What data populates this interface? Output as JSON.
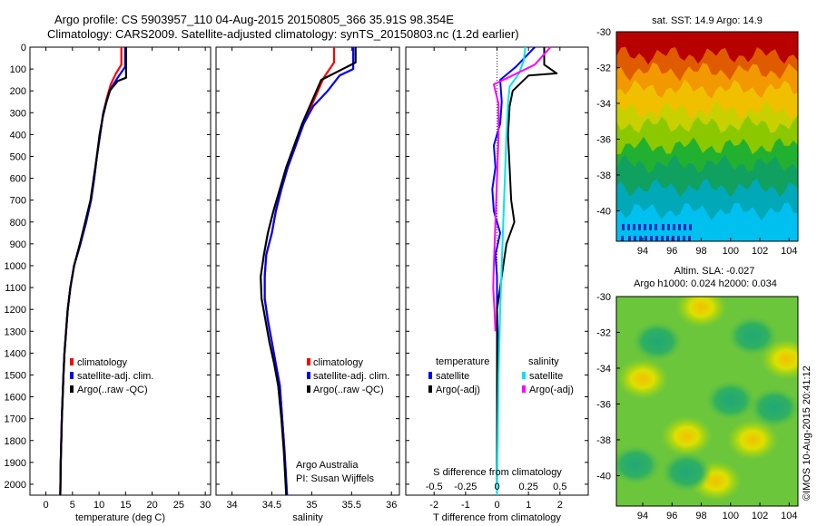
{
  "header": {
    "line1": "Argo profile: CS 5903957_110 04-Aug-2015 20150805_366 35.91S 98.354E",
    "line2": "Climatology: CARS2009. Satellite-adjusted climatology: synTS_20150803.nc (1.2d earlier)"
  },
  "colors": {
    "red": "#ff0000",
    "blue": "#0000ff",
    "black": "#000000",
    "cyan": "#00e5ee",
    "magenta": "#ff00ff"
  },
  "chart_data": [
    {
      "type": "line",
      "xlabel": "temperature (deg C)",
      "x_ticks": [
        "0",
        "5",
        "10",
        "15",
        "20",
        "25",
        "30"
      ],
      "xlim": [
        -3,
        31
      ],
      "ylim": [
        2050,
        0
      ],
      "y_ticks": [
        "0",
        "100",
        "200",
        "300",
        "400",
        "500",
        "600",
        "700",
        "800",
        "900",
        "1000",
        "1100",
        "1200",
        "1300",
        "1400",
        "1500",
        "1600",
        "1700",
        "1800",
        "1900",
        "2000"
      ],
      "legend": [
        "climatology",
        "satellite-adj. clim.",
        "Argo(..raw -QC)"
      ],
      "series": [
        {
          "name": "climatology",
          "color": "red",
          "points": [
            [
              14.2,
              0
            ],
            [
              14.2,
              80
            ],
            [
              13.2,
              120
            ],
            [
              12.2,
              170
            ],
            [
              11.5,
              230
            ],
            [
              10.8,
              300
            ],
            [
              10.2,
              400
            ],
            [
              9.6,
              500
            ],
            [
              9.1,
              600
            ],
            [
              8.5,
              700
            ],
            [
              7.5,
              800
            ],
            [
              6.5,
              900
            ],
            [
              5.3,
              1000
            ],
            [
              4.6,
              1100
            ],
            [
              4.1,
              1200
            ],
            [
              3.8,
              1300
            ],
            [
              3.5,
              1400
            ],
            [
              3.3,
              1500
            ],
            [
              3.0,
              1700
            ],
            [
              2.8,
              1900
            ],
            [
              2.7,
              2050
            ]
          ]
        },
        {
          "name": "satellite-adj. clim.",
          "color": "blue",
          "points": [
            [
              14.9,
              0
            ],
            [
              14.9,
              90
            ],
            [
              13.5,
              140
            ],
            [
              12.2,
              190
            ],
            [
              11.5,
              240
            ],
            [
              10.8,
              300
            ],
            [
              10.2,
              400
            ],
            [
              9.6,
              500
            ],
            [
              9.1,
              600
            ],
            [
              8.5,
              700
            ],
            [
              7.6,
              800
            ],
            [
              6.5,
              900
            ],
            [
              5.3,
              1000
            ],
            [
              4.6,
              1100
            ],
            [
              4.1,
              1200
            ],
            [
              3.8,
              1300
            ],
            [
              3.5,
              1400
            ],
            [
              3.3,
              1500
            ],
            [
              3.0,
              1700
            ],
            [
              2.8,
              1900
            ],
            [
              2.7,
              2050
            ]
          ]
        },
        {
          "name": "Argo(..raw -QC)",
          "color": "black",
          "points": [
            [
              15.1,
              0
            ],
            [
              15.1,
              140
            ],
            [
              13.5,
              155
            ],
            [
              12.0,
              200
            ],
            [
              11.3,
              260
            ],
            [
              10.7,
              320
            ],
            [
              10.1,
              400
            ],
            [
              9.6,
              500
            ],
            [
              9.0,
              600
            ],
            [
              8.4,
              700
            ],
            [
              7.4,
              800
            ],
            [
              6.4,
              900
            ],
            [
              5.3,
              1000
            ],
            [
              4.6,
              1100
            ],
            [
              4.1,
              1200
            ],
            [
              3.8,
              1300
            ],
            [
              3.5,
              1400
            ],
            [
              3.3,
              1500
            ],
            [
              3.0,
              1700
            ],
            [
              2.8,
              1900
            ],
            [
              2.7,
              2050
            ]
          ]
        }
      ]
    },
    {
      "type": "line",
      "xlabel": "salinity",
      "x_ticks": [
        "34",
        "34.5",
        "35",
        "35.5",
        "36"
      ],
      "xlim": [
        33.8,
        36.1
      ],
      "ylim": [
        2050,
        0
      ],
      "legend": [
        "climatology",
        "satellite-adj. clim.",
        "Argo(..raw -QC)"
      ],
      "annotation": [
        "Argo Australia",
        "PI: Susan Wijffels"
      ],
      "series": [
        {
          "name": "climatology",
          "color": "red",
          "points": [
            [
              35.28,
              0
            ],
            [
              35.28,
              70
            ],
            [
              35.15,
              140
            ],
            [
              35.02,
              250
            ],
            [
              34.9,
              350
            ],
            [
              34.8,
              450
            ],
            [
              34.7,
              550
            ],
            [
              34.62,
              650
            ],
            [
              34.55,
              750
            ],
            [
              34.5,
              850
            ],
            [
              34.43,
              950
            ],
            [
              34.41,
              1050
            ],
            [
              34.41,
              1150
            ],
            [
              34.45,
              1250
            ],
            [
              34.5,
              1350
            ],
            [
              34.55,
              1450
            ],
            [
              34.6,
              1550
            ],
            [
              34.63,
              1700
            ],
            [
              34.66,
              1850
            ],
            [
              34.69,
              2050
            ]
          ]
        },
        {
          "name": "satellite-adj. clim.",
          "color": "blue",
          "points": [
            [
              35.52,
              0
            ],
            [
              35.52,
              100
            ],
            [
              35.35,
              130
            ],
            [
              35.2,
              200
            ],
            [
              35.02,
              270
            ],
            [
              34.9,
              350
            ],
            [
              34.8,
              450
            ],
            [
              34.7,
              550
            ],
            [
              34.62,
              650
            ],
            [
              34.55,
              750
            ],
            [
              34.5,
              850
            ],
            [
              34.43,
              950
            ],
            [
              34.41,
              1050
            ],
            [
              34.41,
              1150
            ],
            [
              34.45,
              1250
            ],
            [
              34.5,
              1350
            ],
            [
              34.55,
              1450
            ],
            [
              34.6,
              1550
            ],
            [
              34.63,
              1700
            ],
            [
              34.66,
              1850
            ],
            [
              34.69,
              2050
            ]
          ]
        },
        {
          "name": "Argo(..raw -QC)",
          "color": "black",
          "points": [
            [
              35.55,
              0
            ],
            [
              35.55,
              70
            ],
            [
              35.12,
              150
            ],
            [
              35.0,
              250
            ],
            [
              34.88,
              350
            ],
            [
              34.78,
              450
            ],
            [
              34.68,
              550
            ],
            [
              34.6,
              650
            ],
            [
              34.52,
              750
            ],
            [
              34.45,
              850
            ],
            [
              34.4,
              950
            ],
            [
              34.36,
              1050
            ],
            [
              34.37,
              1150
            ],
            [
              34.42,
              1250
            ],
            [
              34.47,
              1350
            ],
            [
              34.53,
              1450
            ],
            [
              34.58,
              1550
            ],
            [
              34.62,
              1700
            ],
            [
              34.65,
              1850
            ],
            [
              34.68,
              2050
            ]
          ]
        }
      ]
    },
    {
      "type": "line",
      "xlabel": "T difference from climatology",
      "x_ticks": [
        "-2",
        "-1",
        "0",
        "1",
        "2"
      ],
      "xlim": [
        -2.9,
        2.9
      ],
      "top_axis_label": "S difference from climatology",
      "top_x_ticks": [
        "-0.5",
        "-0.25",
        "0",
        "0.25",
        "0.5"
      ],
      "ylim": [
        2050,
        0
      ],
      "legend_temperature_title": "temperature",
      "legend_salinity_title": "salinity",
      "legend_temperature": [
        "satellite",
        "Argo(-adj)"
      ],
      "legend_salinity": [
        "satellite",
        "Argo(-adj)"
      ],
      "series": [
        {
          "name": "satellite",
          "group": "temperature",
          "color": "blue",
          "points": [
            [
              1.2,
              0
            ],
            [
              0.6,
              90
            ],
            [
              0.1,
              150
            ],
            [
              0.15,
              250
            ],
            [
              0.1,
              350
            ],
            [
              -0.1,
              450
            ],
            [
              -0.05,
              550
            ],
            [
              -0.15,
              650
            ],
            [
              -0.1,
              750
            ],
            [
              0.1,
              850
            ],
            [
              -0.05,
              950
            ],
            [
              0,
              1050
            ],
            [
              0,
              1200
            ],
            [
              0.05,
              1400
            ],
            [
              0,
              1700
            ],
            [
              0,
              2050
            ]
          ]
        },
        {
          "name": "Argo(-adj)",
          "group": "temperature",
          "color": "black",
          "points": [
            [
              1.5,
              0
            ],
            [
              1.5,
              80
            ],
            [
              1.9,
              120
            ],
            [
              1.0,
              130
            ],
            [
              0.5,
              200
            ],
            [
              0.4,
              270
            ],
            [
              0.35,
              400
            ],
            [
              0.4,
              550
            ],
            [
              0.45,
              700
            ],
            [
              0.55,
              800
            ],
            [
              0.3,
              900
            ],
            [
              0.2,
              1000
            ],
            [
              0.1,
              1100
            ],
            [
              0,
              1200
            ],
            [
              0,
              1400
            ],
            [
              0,
              2050
            ]
          ]
        },
        {
          "name": "satellite",
          "group": "salinity",
          "color": "cyan",
          "points": [
            [
              0.9,
              0
            ],
            [
              0.85,
              60
            ],
            [
              0.7,
              120
            ],
            [
              0.4,
              180
            ],
            [
              0.35,
              260
            ],
            [
              0.3,
              400
            ],
            [
              0.25,
              600
            ],
            [
              0.2,
              800
            ],
            [
              0.15,
              1000
            ],
            [
              0.1,
              1200
            ],
            [
              0.05,
              1500
            ],
            [
              0,
              2050
            ]
          ]
        },
        {
          "name": "Argo(-adj)",
          "group": "salinity",
          "color": "magenta",
          "points": [
            [
              1.7,
              0
            ],
            [
              1.2,
              80
            ],
            [
              0.2,
              150
            ],
            [
              -0.1,
              170
            ],
            [
              0.05,
              260
            ],
            [
              0.05,
              400
            ],
            [
              0.0,
              600
            ],
            [
              -0.05,
              800
            ],
            [
              -0.1,
              1000
            ],
            [
              -0.12,
              1100
            ],
            [
              -0.08,
              1200
            ],
            [
              -0.05,
              1300
            ]
          ]
        }
      ]
    },
    {
      "type": "heatmap",
      "title": "sat. SST: 14.9 Argo: 14.9",
      "x_ticks": [
        "94",
        "96",
        "98",
        "100",
        "102",
        "104"
      ],
      "y_ticks": [
        "-30",
        "-32",
        "-34",
        "-36",
        "-38",
        "-40"
      ],
      "xlim": [
        92.2,
        104.6
      ],
      "ylim": [
        -41.7,
        -30
      ],
      "bands": [
        {
          "to": -30.0,
          "color": "#b80000"
        },
        {
          "to": -31.3,
          "color": "#b80000"
        },
        {
          "to": -32.2,
          "color": "#e05a00"
        },
        {
          "to": -33.2,
          "color": "#f29800"
        },
        {
          "to": -34.4,
          "color": "#f0c000"
        },
        {
          "to": -35.2,
          "color": "#c8d000"
        },
        {
          "to": -36.4,
          "color": "#8cc800"
        },
        {
          "to": -37.4,
          "color": "#22b030"
        },
        {
          "to": -38.7,
          "color": "#10a060"
        },
        {
          "to": -40.0,
          "color": "#00a8b8"
        },
        {
          "to": -41.7,
          "color": "#00c0f0"
        }
      ]
    },
    {
      "type": "heatmap",
      "title_line1": "Altim. SLA: -0.027",
      "title_line2": "Argo h1000: 0.024 h2000: 0.034",
      "x_ticks": [
        "94",
        "96",
        "98",
        "100",
        "102",
        "104"
      ],
      "y_ticks": [
        "-30",
        "-32",
        "-34",
        "-36",
        "-38",
        "-40"
      ],
      "xlim": [
        92.2,
        104.6
      ],
      "ylim": [
        -41.7,
        -30
      ],
      "blobs": [
        {
          "x": 98,
          "y": -30.6,
          "v": "high"
        },
        {
          "x": 97,
          "y": -37.8,
          "v": "high"
        },
        {
          "x": 101.5,
          "y": -38,
          "v": "high"
        },
        {
          "x": 94,
          "y": -34.6,
          "v": "high"
        },
        {
          "x": 103.8,
          "y": -33.5,
          "v": "high"
        },
        {
          "x": 99,
          "y": -40.3,
          "v": "high"
        },
        {
          "x": 95,
          "y": -32.5,
          "v": "low"
        },
        {
          "x": 100,
          "y": -35.8,
          "v": "low"
        },
        {
          "x": 103,
          "y": -36.2,
          "v": "low"
        },
        {
          "x": 97,
          "y": -39.8,
          "v": "low"
        },
        {
          "x": 93.5,
          "y": -39.4,
          "v": "low"
        },
        {
          "x": 101.5,
          "y": -32.2,
          "v": "low"
        }
      ]
    }
  ],
  "footer_stamp": "©IMOS 10-Aug-2015 20:41:12"
}
